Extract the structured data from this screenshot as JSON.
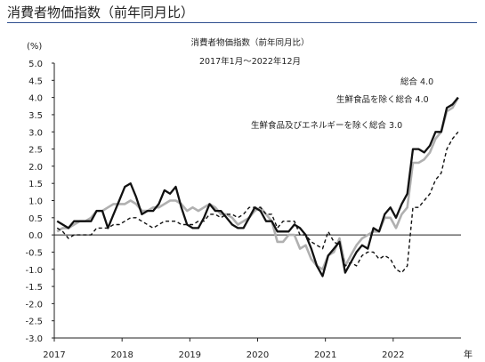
{
  "heading": "消費者物価指数（前年同月比）",
  "chart_data": {
    "type": "line",
    "title": "消費者物価指数（前年同月比）",
    "subtitle": "2017年1月～2022年12月",
    "ylabel": "(%)",
    "xlabel": "年",
    "ylim": [
      -3.0,
      5.0
    ],
    "yticks": [
      "5.0",
      "4.5",
      "4.0",
      "3.5",
      "3.0",
      "2.5",
      "2.0",
      "1.5",
      "1.0",
      "0.5",
      "0.0",
      "-0.5",
      "-1.0",
      "-1.5",
      "-2.0",
      "-2.5",
      "-3.0"
    ],
    "xticks": [
      "2017",
      "2018",
      "2019",
      "2020",
      "2021",
      "2022"
    ],
    "x_start": "2017-01",
    "x_end": "2022-12",
    "annotations": [
      "総合 4.0",
      "生鮮食品を除く総合 4.0",
      "生鮮食品及びエネルギーを除く総合 3.0"
    ],
    "series": [
      {
        "name": "総合",
        "color": "#111111",
        "style": "solid",
        "values": [
          0.4,
          0.3,
          0.2,
          0.4,
          0.4,
          0.4,
          0.4,
          0.7,
          0.7,
          0.2,
          0.6,
          1.0,
          1.4,
          1.5,
          1.1,
          0.6,
          0.7,
          0.7,
          0.9,
          1.3,
          1.2,
          1.4,
          0.8,
          0.3,
          0.2,
          0.2,
          0.5,
          0.9,
          0.7,
          0.7,
          0.5,
          0.3,
          0.2,
          0.2,
          0.5,
          0.8,
          0.7,
          0.4,
          0.4,
          0.1,
          0.1,
          0.1,
          0.3,
          0.2,
          0.0,
          -0.4,
          -0.9,
          -1.2,
          -0.6,
          -0.4,
          -0.2,
          -1.1,
          -0.8,
          -0.5,
          -0.3,
          -0.4,
          0.2,
          0.1,
          0.6,
          0.8,
          0.5,
          0.9,
          1.2,
          2.5,
          2.5,
          2.4,
          2.6,
          3.0,
          3.0,
          3.7,
          3.8,
          4.0
        ]
      },
      {
        "name": "生鮮食品を除く総合",
        "color": "#b0b0b0",
        "style": "solid",
        "values": [
          0.1,
          0.2,
          0.2,
          0.3,
          0.4,
          0.4,
          0.5,
          0.7,
          0.7,
          0.8,
          0.9,
          0.9,
          0.9,
          1.0,
          0.9,
          0.7,
          0.7,
          0.8,
          0.8,
          0.9,
          1.0,
          1.0,
          0.9,
          0.7,
          0.8,
          0.7,
          0.8,
          0.9,
          0.8,
          0.6,
          0.6,
          0.5,
          0.3,
          0.4,
          0.5,
          0.7,
          0.8,
          0.6,
          0.4,
          -0.2,
          -0.2,
          0.0,
          0.0,
          -0.4,
          -0.3,
          -0.7,
          -0.9,
          -1.0,
          -0.6,
          -0.5,
          -0.1,
          -0.9,
          -0.6,
          -0.3,
          -0.1,
          0.0,
          0.1,
          0.1,
          0.5,
          0.5,
          0.2,
          0.6,
          0.8,
          2.1,
          2.1,
          2.2,
          2.4,
          2.8,
          3.0,
          3.6,
          3.7,
          4.0
        ]
      },
      {
        "name": "生鮮食品及びエネルギーを除く総合",
        "color": "#111111",
        "style": "dashed",
        "values": [
          0.2,
          0.1,
          -0.1,
          0.0,
          0.0,
          0.0,
          0.0,
          0.2,
          0.2,
          0.2,
          0.3,
          0.3,
          0.4,
          0.5,
          0.5,
          0.4,
          0.3,
          0.2,
          0.3,
          0.4,
          0.4,
          0.4,
          0.3,
          0.3,
          0.3,
          0.4,
          0.4,
          0.6,
          0.6,
          0.5,
          0.6,
          0.6,
          0.5,
          0.6,
          0.8,
          0.8,
          0.8,
          0.6,
          0.6,
          0.2,
          0.4,
          0.4,
          0.4,
          0.0,
          0.0,
          -0.2,
          -0.3,
          -0.4,
          0.1,
          -0.2,
          -0.3,
          -0.9,
          -0.8,
          -0.9,
          -0.6,
          -0.5,
          -0.5,
          -0.7,
          -0.6,
          -0.7,
          -1.0,
          -1.1,
          -0.9,
          0.8,
          0.8,
          1.0,
          1.2,
          1.6,
          1.8,
          2.5,
          2.8,
          3.0
        ]
      }
    ]
  }
}
